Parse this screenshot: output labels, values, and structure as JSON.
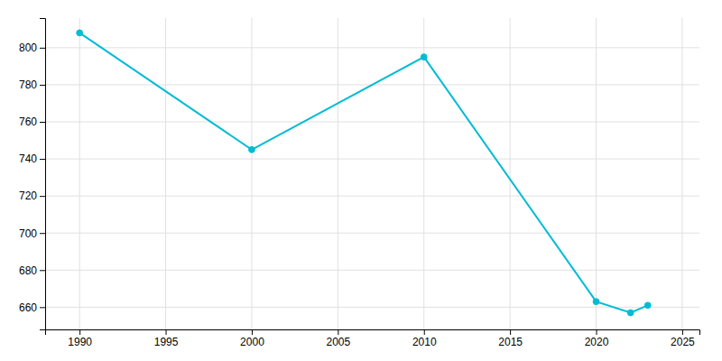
{
  "chart_data": {
    "type": "line",
    "x": [
      1990,
      2000,
      2010,
      2020,
      2022,
      2023
    ],
    "values": [
      808,
      745,
      795,
      663,
      657,
      661
    ],
    "color": "#00bcd4",
    "marker": "circle",
    "xlim": [
      1988,
      2026
    ],
    "ylim": [
      648,
      816
    ],
    "xticks": [
      1990,
      1995,
      2000,
      2005,
      2010,
      2015,
      2020,
      2025
    ],
    "yticks": [
      660,
      680,
      700,
      720,
      740,
      760,
      780,
      800
    ],
    "grid": true
  }
}
